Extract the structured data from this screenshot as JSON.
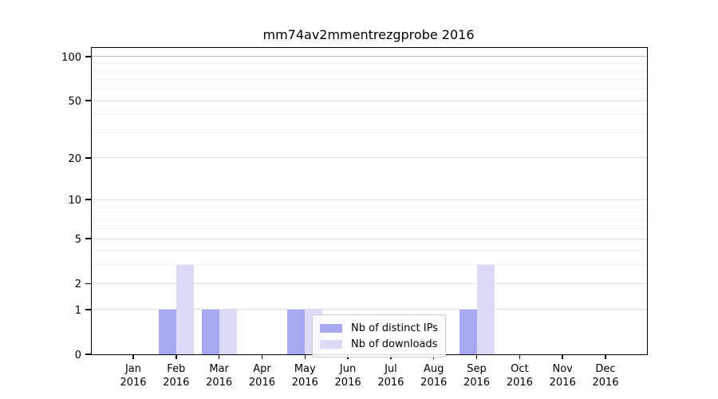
{
  "title": "mm74av2mmentrezgprobe 2016",
  "chart_data": {
    "type": "bar",
    "title": "mm74av2mmentrezgprobe 2016",
    "categories": [
      "Jan 2016",
      "Feb 2016",
      "Mar 2016",
      "Apr 2016",
      "May 2016",
      "Jun 2016",
      "Jul 2016",
      "Aug 2016",
      "Sep 2016",
      "Oct 2016",
      "Nov 2016",
      "Dec 2016"
    ],
    "series": [
      {
        "name": "Nb of distinct IPs",
        "color": "#a9a9f2",
        "values": [
          0,
          1,
          1,
          0,
          1,
          0,
          0,
          0,
          1,
          0,
          0,
          0
        ]
      },
      {
        "name": "Nb of downloads",
        "color": "#dbdbf8",
        "values": [
          0,
          3,
          1,
          0,
          1,
          0,
          0,
          0,
          3,
          0,
          0,
          0
        ]
      }
    ],
    "xlabel": "",
    "ylabel": "",
    "yscale": "log1p",
    "ylim": [
      0,
      114.6
    ],
    "yticks": [
      0,
      1,
      2,
      5,
      10,
      20,
      50,
      100
    ],
    "ytick_labels": [
      "0",
      "1",
      "2",
      "5",
      "10",
      "20",
      "50",
      "100"
    ],
    "minor_yticks": [
      3,
      4,
      6,
      7,
      8,
      9,
      30,
      40,
      60,
      70,
      80,
      90
    ],
    "emphasized_gridline": 100,
    "grid": true,
    "legend_position": "lower center",
    "colors": {
      "major_grid": "#e2e2e2",
      "minor_grid": "#f2f2f2",
      "emph_grid": "#bdbdbd",
      "spine": "#000000",
      "legend_border": "#cccccc"
    }
  }
}
